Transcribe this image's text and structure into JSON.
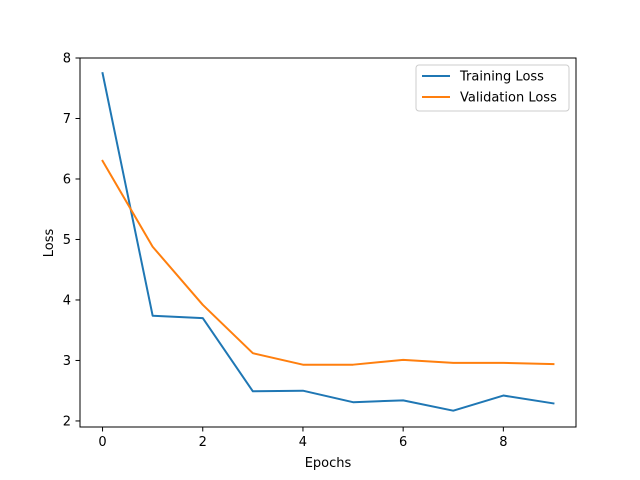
{
  "chart_data": {
    "type": "line",
    "title": "",
    "xlabel": "Epochs",
    "ylabel": "Loss",
    "x": [
      0,
      1,
      2,
      3,
      4,
      5,
      6,
      7,
      8,
      9
    ],
    "xlim": [
      -0.45,
      9.45
    ],
    "ylim": [
      1.9,
      8.0
    ],
    "xticks": [
      0,
      2,
      4,
      6,
      8
    ],
    "yticks": [
      2,
      3,
      4,
      5,
      6,
      7,
      8
    ],
    "grid": false,
    "legend_position": "top-right",
    "series": [
      {
        "name": "Training Loss",
        "color": "#1f77b4",
        "values": [
          7.75,
          3.74,
          3.7,
          2.49,
          2.5,
          2.31,
          2.34,
          2.17,
          2.42,
          2.29
        ]
      },
      {
        "name": "Validation Loss",
        "color": "#ff7f0e",
        "values": [
          6.3,
          4.88,
          3.92,
          3.12,
          2.93,
          2.93,
          3.01,
          2.96,
          2.96,
          2.94
        ]
      }
    ]
  }
}
